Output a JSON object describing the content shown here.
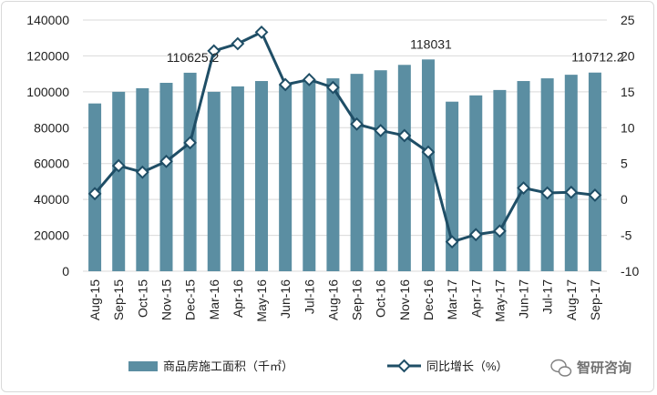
{
  "chart_data": {
    "type": "bar+line",
    "categories": [
      "Aug-15",
      "Sep-15",
      "Oct-15",
      "Nov-15",
      "Dec-15",
      "Mar-16",
      "Apr-16",
      "May-16",
      "Jun-16",
      "Jul-16",
      "Aug-16",
      "Sep-16",
      "Oct-16",
      "Nov-16",
      "Dec-16",
      "Mar-17",
      "Apr-17",
      "May-17",
      "Jun-17",
      "Jul-17",
      "Aug-17",
      "Sep-17"
    ],
    "series": [
      {
        "name": "商品房施工面积（千㎡）",
        "type": "bar",
        "axis": "left",
        "values": [
          93500,
          100000,
          102000,
          105000,
          110625.2,
          100000,
          103000,
          106000,
          104000,
          106000,
          107500,
          110000,
          112000,
          115000,
          118031,
          94500,
          98000,
          101000,
          106000,
          107500,
          109500,
          110712.2
        ]
      },
      {
        "name": "同比增长（%）",
        "type": "line",
        "axis": "right",
        "values": [
          0.8,
          4.7,
          3.8,
          5.3,
          7.9,
          20.7,
          21.7,
          23.3,
          16.0,
          16.7,
          15.6,
          10.5,
          9.6,
          8.9,
          6.6,
          -5.9,
          -4.9,
          -4.4,
          1.6,
          0.9,
          1.0,
          0.6
        ]
      }
    ],
    "data_labels": [
      {
        "index": 4,
        "text": "110625.2"
      },
      {
        "index": 14,
        "text": "118031"
      },
      {
        "index": 21,
        "text": "110712.2"
      }
    ],
    "y_left": {
      "min": 0,
      "max": 140000,
      "ticks": [
        "0",
        "20000",
        "40000",
        "60000",
        "80000",
        "100000",
        "120000",
        "140000"
      ]
    },
    "y_right": {
      "min": -10,
      "max": 25,
      "ticks": [
        "-10",
        "-5",
        "0",
        "5",
        "10",
        "15",
        "20",
        "25"
      ]
    },
    "grid": true,
    "legend_position": "bottom",
    "colors": {
      "bar": "#5b8ea2",
      "line": "#1f4e66",
      "marker_fill": "#ffffff",
      "grid": "#d9d9d9"
    }
  },
  "watermark": {
    "text": "智研咨询",
    "icon": "wechat-logo-icon"
  }
}
